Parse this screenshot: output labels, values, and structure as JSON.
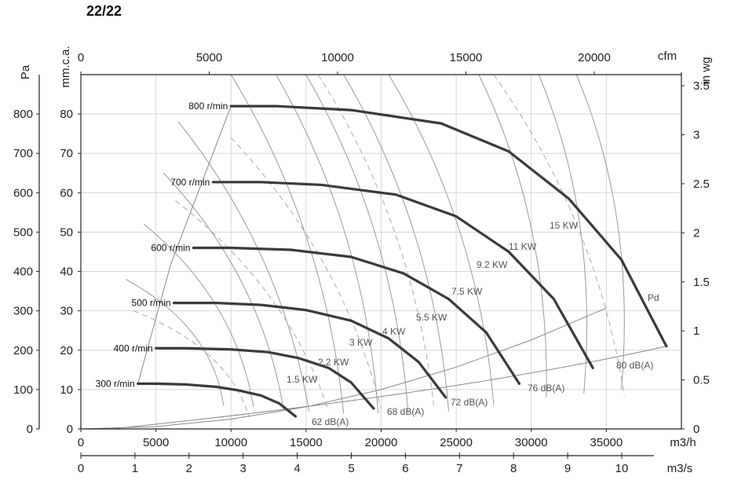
{
  "chart_data": {
    "type": "line",
    "title": "22/22",
    "x_axes": {
      "main": {
        "label": "m3/h",
        "range": [
          0,
          40000
        ],
        "ticks": [
          0,
          5000,
          10000,
          15000,
          20000,
          25000,
          30000,
          35000
        ]
      },
      "secondary": {
        "label": "m3/s",
        "ticks": [
          0,
          1,
          2,
          3,
          4,
          5,
          6,
          7,
          8,
          9,
          10
        ]
      },
      "top": {
        "label": "cfm",
        "ticks": [
          0,
          5000,
          10000,
          15000,
          20000
        ]
      }
    },
    "y_axes": {
      "left_outer": {
        "label": "Pa",
        "range": [
          0,
          900
        ],
        "ticks": [
          0,
          100,
          200,
          300,
          400,
          500,
          600,
          700,
          800
        ]
      },
      "left_inner": {
        "label": "mm.c.a.",
        "ticks": [
          0,
          10,
          20,
          30,
          40,
          50,
          60,
          70,
          80
        ]
      },
      "right": {
        "label": "in wg",
        "ticks": [
          0,
          0.5,
          1,
          1.5,
          2,
          2.5,
          3,
          3.5
        ]
      }
    },
    "grid": true,
    "speed_curves": [
      {
        "name": "300 r/min",
        "x": [
          3800,
          5000,
          7000,
          9000,
          10500,
          12000,
          13200,
          14300
        ],
        "y": [
          115,
          115,
          113,
          107,
          98,
          85,
          65,
          32
        ]
      },
      {
        "name": "400 r/min",
        "x": [
          5000,
          7000,
          10000,
          12500,
          14500,
          16500,
          18000,
          19500
        ],
        "y": [
          205,
          205,
          202,
          195,
          180,
          155,
          118,
          52
        ]
      },
      {
        "name": "500 r/min",
        "x": [
          6200,
          9000,
          12000,
          15000,
          18000,
          20500,
          22500,
          24300
        ],
        "y": [
          320,
          320,
          315,
          302,
          275,
          230,
          170,
          80
        ]
      },
      {
        "name": "600 r/min",
        "x": [
          7500,
          10000,
          14000,
          18000,
          21500,
          24500,
          27000,
          29200
        ],
        "y": [
          460,
          460,
          455,
          437,
          395,
          330,
          245,
          115
        ]
      },
      {
        "name": "700 r/min",
        "x": [
          8800,
          12000,
          16000,
          21000,
          25000,
          28500,
          31500,
          34100
        ],
        "y": [
          627,
          627,
          620,
          595,
          540,
          450,
          330,
          155
        ]
      },
      {
        "name": "800 r/min",
        "x": [
          10000,
          13000,
          18000,
          24000,
          28500,
          32500,
          36000,
          39000
        ],
        "y": [
          820,
          820,
          810,
          776,
          705,
          585,
          430,
          210
        ]
      }
    ],
    "power_labels": [
      "1.5 KW",
      "2.2 KW",
      "3 KW",
      "4 KW",
      "5.5 KW",
      "7.5 KW",
      "9.2 KW",
      "11 KW",
      "15 KW"
    ],
    "noise_labels": [
      "62 dB(A)",
      "68 dB(A)",
      "72 dB(A)",
      "76 dB(A)",
      "80 dB(A)"
    ],
    "pd_label": "Pd",
    "pd_curve": {
      "x": [
        0,
        5000,
        10000,
        15000,
        20000,
        25000,
        30000,
        35000,
        39000
      ],
      "y": [
        0,
        6,
        25,
        56,
        100,
        157,
        226,
        307,
        300
      ]
    }
  }
}
